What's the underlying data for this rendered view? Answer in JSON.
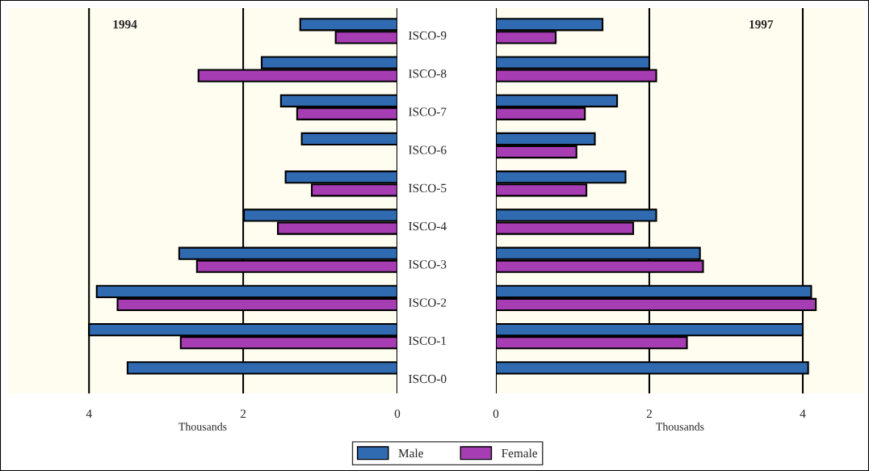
{
  "chart_data": [
    {
      "type": "bar",
      "orientation": "horizontal",
      "title": "1994",
      "xlabel": "Thousands",
      "categories": [
        null,
        null,
        null,
        null,
        null,
        null,
        null,
        null,
        null,
        null
      ],
      "series": [
        {
          "color": "#306bb2",
          "values": [
            1.26,
            1.76,
            1.51,
            1.24,
            1.45,
            1.99,
            2.83,
            3.9,
            4.0,
            3.5
          ]
        },
        {
          "color": "#a63db3",
          "values": [
            0.8,
            2.58,
            1.3,
            null,
            1.11,
            1.55,
            2.6,
            3.63,
            2.81,
            null
          ]
        }
      ],
      "xlim": [
        5.05,
        0
      ],
      "xticks": [
        4,
        2,
        0
      ],
      "grid": "x",
      "tick_labels": "x"
    },
    {
      "type": "bar",
      "orientation": "horizontal",
      "title": "1997",
      "xlabel": "Thousands",
      "categories": [
        "ISCO-9",
        "ISCO-8",
        "ISCO-7",
        "ISCO-6",
        "ISCO-5",
        "ISCO-4",
        "ISCO-3",
        "ISCO-2",
        "ISCO-1",
        "ISCO-0"
      ],
      "series": [
        {
          "name": "Male",
          "color": "#306bb2",
          "values": [
            1.39,
            2.0,
            1.58,
            1.29,
            1.69,
            2.09,
            2.66,
            4.11,
            4.0,
            4.07
          ]
        },
        {
          "name": "Female",
          "color": "#a63db3",
          "values": [
            0.78,
            2.09,
            1.16,
            1.05,
            1.18,
            1.79,
            2.7,
            4.17,
            2.49,
            null
          ]
        }
      ],
      "xlim": [
        0,
        4.8
      ],
      "xticks": [
        0,
        2,
        4
      ],
      "grid": "x",
      "legend": "bottom"
    }
  ]
}
